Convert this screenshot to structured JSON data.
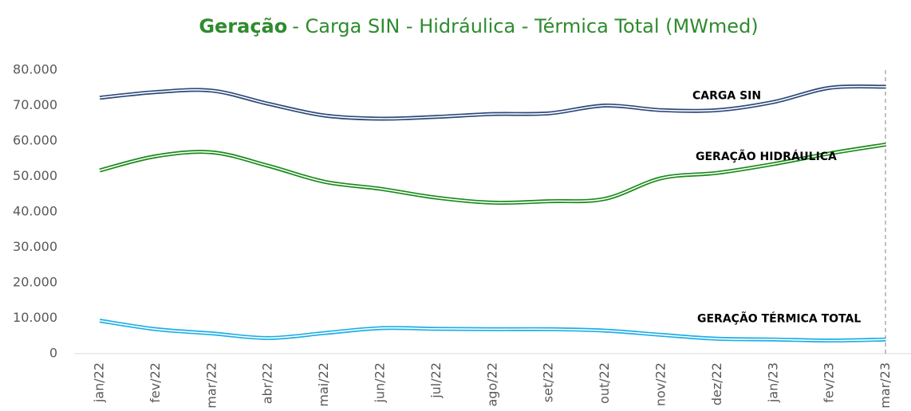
{
  "chart_data": {
    "type": "line",
    "title": [
      "Geração",
      "- Carga SIN - Hidráulica - Térmica Total (MWmed)"
    ],
    "title_color": "#2e8b2e",
    "categories": [
      "jan/22",
      "fev/22",
      "mar/22",
      "abr/22",
      "mai/22",
      "jun/22",
      "jul/22",
      "ago/22",
      "set/22",
      "out/22",
      "nov/22",
      "dez/22",
      "jan/23",
      "fev/23",
      "mar/23"
    ],
    "series": [
      {
        "name": "CARGA SIN",
        "color": "#2e4a7a",
        "values": [
          72200,
          73800,
          74200,
          70500,
          67200,
          66300,
          66800,
          67600,
          67800,
          70000,
          68700,
          68700,
          71000,
          75000,
          75300
        ]
      },
      {
        "name": "GERAÇÃO HIDRÁULICA",
        "color": "#1a8a1a",
        "values": [
          51700,
          55700,
          56800,
          53000,
          48500,
          46500,
          44000,
          42600,
          43000,
          43700,
          49500,
          51000,
          53500,
          56500,
          59000
        ]
      },
      {
        "name": "GERAÇÃO TÉRMICA TOTAL",
        "color": "#1eaee6",
        "values": [
          9300,
          6900,
          5700,
          4400,
          5800,
          7200,
          7000,
          6900,
          6900,
          6500,
          5300,
          4200,
          4000,
          3700,
          4000
        ]
      }
    ],
    "ylim": [
      0,
      80000
    ],
    "yticks": [
      0,
      {
        "value": 10000,
        "label": "10.000"
      },
      {
        "value": 20000,
        "label": "20.000"
      },
      {
        "value": 30000,
        "label": "30.000"
      },
      {
        "value": 40000,
        "label": "40.000"
      },
      {
        "value": 50000,
        "label": "50.000"
      },
      {
        "value": 60000,
        "label": "60.000"
      },
      {
        "value": 70000,
        "label": "70.000"
      },
      {
        "value": 80000,
        "label": "80.000"
      }
    ],
    "grid": false
  }
}
